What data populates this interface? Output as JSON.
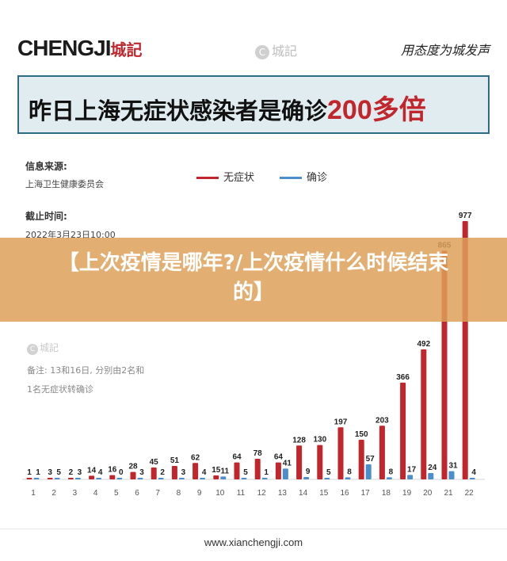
{
  "header": {
    "brand": "CHENGJI",
    "brand_cn": "城記",
    "center_logo_mark": "C",
    "center_logo_text": "城記",
    "slogan": "用态度为城发声"
  },
  "title": {
    "text": "昨日上海无症状感染者是确诊",
    "highlight": "200多倍"
  },
  "meta": {
    "source_label": "信息来源:",
    "source_value": "上海卫生健康委员会",
    "deadline_label": "截止时间:",
    "deadline_value": "2022年3月23日10:00"
  },
  "overlay": {
    "text": "【上次疫情是哪年?/上次疫情什么时候结束的】"
  },
  "watermark": {
    "mark": "C",
    "text": "城記"
  },
  "notes": {
    "line1": "备注: 13和16日, 分别由2名和",
    "line2": "1名无症状转确诊"
  },
  "footer": {
    "url": "www.xianchengji.com"
  },
  "colors": {
    "asymptomatic": "#c0262c",
    "confirmed": "#4a8fcc",
    "title_border": "#2d6b86",
    "overlay": "#dea058"
  },
  "chart_data": {
    "type": "bar",
    "categories": [
      "1",
      "2",
      "3",
      "4",
      "5",
      "6",
      "7",
      "8",
      "9",
      "10",
      "11",
      "12",
      "13",
      "14",
      "15",
      "16",
      "17",
      "18",
      "19",
      "20",
      "21",
      "22"
    ],
    "series": [
      {
        "name": "无症状",
        "values": [
          1,
          3,
          2,
          14,
          16,
          28,
          45,
          51,
          62,
          15,
          64,
          78,
          64,
          128,
          130,
          197,
          150,
          203,
          366,
          492,
          865,
          977
        ]
      },
      {
        "name": "确诊",
        "values": [
          1,
          5,
          3,
          4,
          0,
          3,
          2,
          3,
          4,
          11,
          5,
          1,
          41,
          9,
          5,
          8,
          57,
          8,
          17,
          24,
          31,
          4
        ]
      }
    ],
    "legend_position": "top"
  }
}
